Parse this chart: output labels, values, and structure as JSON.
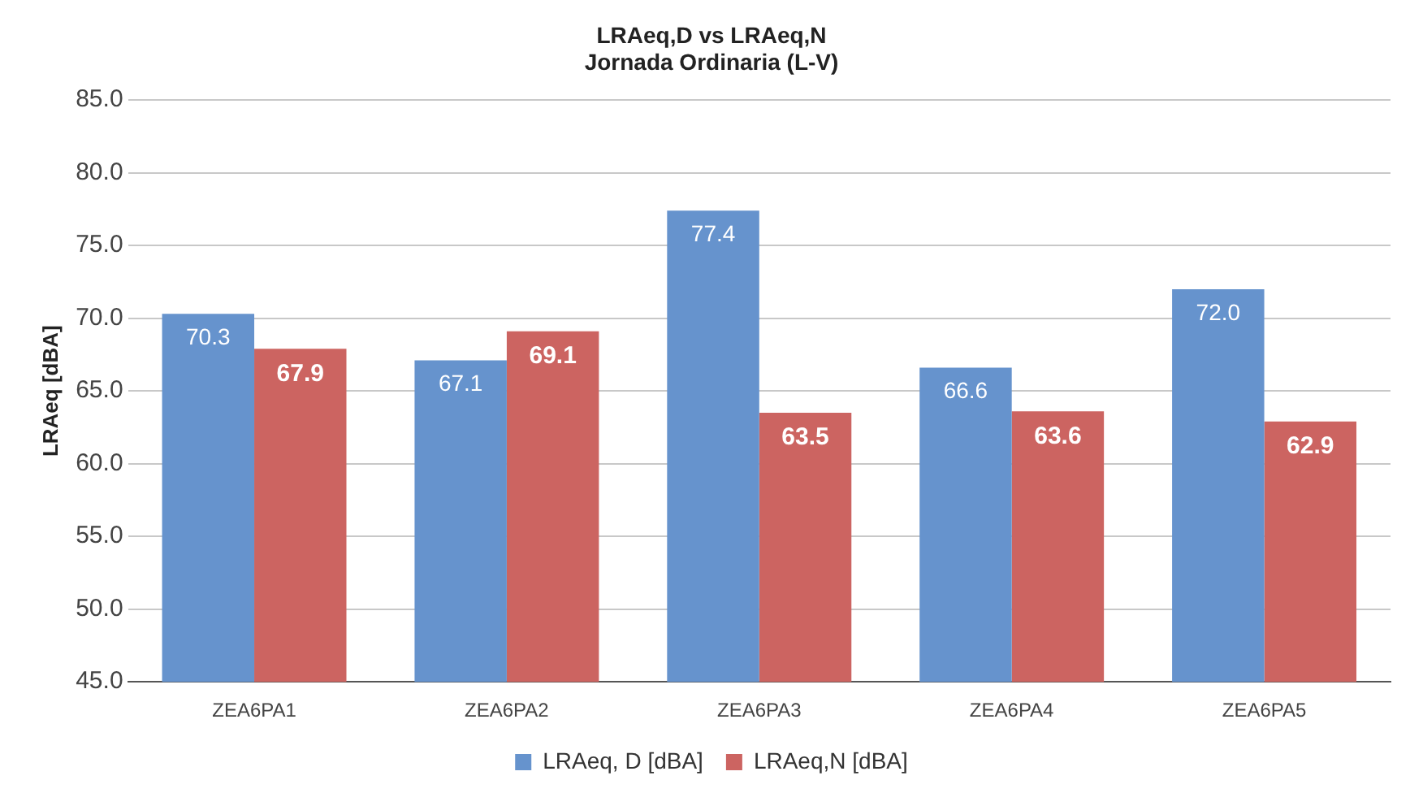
{
  "chart_data": {
    "type": "bar",
    "title": "LRAeq,D vs LRAeq,N\nJornada Ordinaria (L-V)",
    "ylabel": "LRAeq [dBA]",
    "categories": [
      "ZEA6PA1",
      "ZEA6PA2",
      "ZEA6PA3",
      "ZEA6PA4",
      "ZEA6PA5"
    ],
    "series": [
      {
        "name": "LRAeq, D [dBA]",
        "color": "#6693cd",
        "values": [
          70.3,
          67.1,
          77.4,
          66.6,
          72.0
        ],
        "value_labels": [
          "70.3",
          "67.1",
          "77.4",
          "66.6",
          "72.0"
        ]
      },
      {
        "name": "LRAeq,N [dBA]",
        "color": "#cc6461",
        "values": [
          67.9,
          69.1,
          63.5,
          63.6,
          62.9
        ],
        "value_labels": [
          "67.9",
          "69.1",
          "63.5",
          "63.6",
          "62.9"
        ]
      }
    ],
    "ylim": [
      45,
      85
    ],
    "yticks": [
      {
        "value": 45,
        "label": "45.0"
      },
      {
        "value": 50,
        "label": "50.0"
      },
      {
        "value": 55,
        "label": "55.0"
      },
      {
        "value": 60,
        "label": "60.0"
      },
      {
        "value": 65,
        "label": "65.0"
      },
      {
        "value": 70,
        "label": "70.0"
      },
      {
        "value": 75,
        "label": "75.0"
      },
      {
        "value": 80,
        "label": "80.0"
      },
      {
        "value": 85,
        "label": "85.0"
      }
    ],
    "grid": "y",
    "legend": "bottom"
  }
}
